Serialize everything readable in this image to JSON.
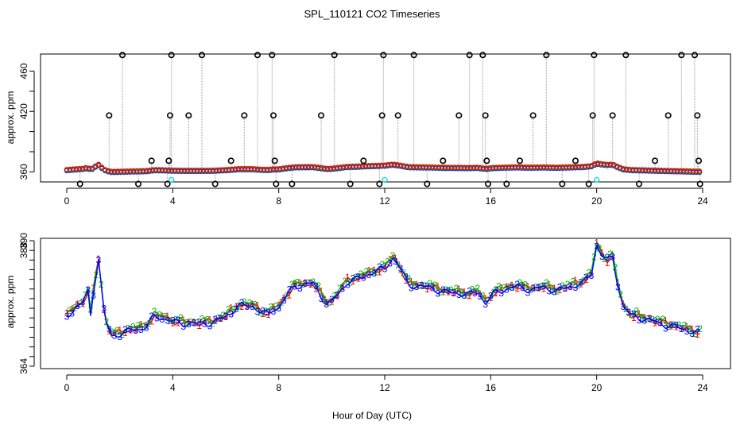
{
  "figure": {
    "title": "SPL_110121  CO2 Timeseries",
    "xlabel": "Hour of Day (UTC)"
  },
  "chart_data": [
    {
      "type": "scatter",
      "panel": "top",
      "xlabel": "",
      "ylabel": "approx. ppm",
      "xlim": [
        0,
        24
      ],
      "ylim": [
        350,
        477
      ],
      "xticks": [
        0,
        4,
        8,
        12,
        16,
        20,
        24
      ],
      "yticks": [
        360,
        380,
        400,
        420,
        440,
        460
      ],
      "ytick_labels": [
        "360",
        "",
        "",
        "420",
        "",
        "460"
      ],
      "spikes": [
        {
          "x": 0.5,
          "y": 348
        },
        {
          "x": 1.6,
          "y": 416
        },
        {
          "x": 2.1,
          "y": 476
        },
        {
          "x": 2.7,
          "y": 348
        },
        {
          "x": 3.2,
          "y": 371
        },
        {
          "x": 3.8,
          "y": 348
        },
        {
          "x": 3.85,
          "y": 371
        },
        {
          "x": 3.9,
          "y": 416
        },
        {
          "x": 3.95,
          "y": 476
        },
        {
          "x": 4.6,
          "y": 416
        },
        {
          "x": 5.1,
          "y": 476
        },
        {
          "x": 5.6,
          "y": 348
        },
        {
          "x": 6.2,
          "y": 371
        },
        {
          "x": 6.7,
          "y": 416
        },
        {
          "x": 7.2,
          "y": 476
        },
        {
          "x": 7.75,
          "y": 476
        },
        {
          "x": 7.8,
          "y": 416
        },
        {
          "x": 7.85,
          "y": 371
        },
        {
          "x": 7.9,
          "y": 348
        },
        {
          "x": 8.5,
          "y": 348
        },
        {
          "x": 9.6,
          "y": 416
        },
        {
          "x": 10.1,
          "y": 476
        },
        {
          "x": 10.7,
          "y": 348
        },
        {
          "x": 11.2,
          "y": 371
        },
        {
          "x": 11.8,
          "y": 348
        },
        {
          "x": 11.9,
          "y": 416
        },
        {
          "x": 11.95,
          "y": 476
        },
        {
          "x": 12.5,
          "y": 416
        },
        {
          "x": 13.1,
          "y": 476
        },
        {
          "x": 13.6,
          "y": 348
        },
        {
          "x": 14.2,
          "y": 371
        },
        {
          "x": 14.8,
          "y": 416
        },
        {
          "x": 15.2,
          "y": 476
        },
        {
          "x": 15.7,
          "y": 476
        },
        {
          "x": 15.8,
          "y": 416
        },
        {
          "x": 15.85,
          "y": 371
        },
        {
          "x": 15.9,
          "y": 348
        },
        {
          "x": 16.6,
          "y": 348
        },
        {
          "x": 17.1,
          "y": 371
        },
        {
          "x": 17.6,
          "y": 416
        },
        {
          "x": 18.1,
          "y": 476
        },
        {
          "x": 18.7,
          "y": 348
        },
        {
          "x": 19.2,
          "y": 371
        },
        {
          "x": 19.7,
          "y": 348
        },
        {
          "x": 19.85,
          "y": 416
        },
        {
          "x": 19.9,
          "y": 476
        },
        {
          "x": 20.6,
          "y": 416
        },
        {
          "x": 21.1,
          "y": 476
        },
        {
          "x": 21.6,
          "y": 348
        },
        {
          "x": 22.2,
          "y": 371
        },
        {
          "x": 22.7,
          "y": 416
        },
        {
          "x": 23.2,
          "y": 476
        },
        {
          "x": 23.7,
          "y": 476
        },
        {
          "x": 23.8,
          "y": 416
        },
        {
          "x": 23.85,
          "y": 371
        },
        {
          "x": 23.9,
          "y": 348
        }
      ],
      "outliers_cyan": [
        {
          "x": 3.95,
          "y": 352
        },
        {
          "x": 12.0,
          "y": 352
        },
        {
          "x": 20.0,
          "y": 352
        }
      ],
      "series_colors": {
        "s1": "#ff0000",
        "s2": "#00bb00",
        "s3": "#0000ff",
        "spike": "#000000",
        "outlier": "#00dddd",
        "connector": "#999999"
      }
    },
    {
      "type": "line",
      "panel": "bottom",
      "ylabel": "approx. ppm",
      "xlim": [
        0,
        24
      ],
      "ylim": [
        363.5,
        390.5
      ],
      "xticks": [
        0,
        4,
        8,
        12,
        16,
        20,
        24
      ],
      "yticks": [
        364,
        366,
        368,
        370,
        372,
        374,
        376,
        378,
        380,
        382,
        384,
        386,
        388,
        390
      ],
      "ytick_labels": [
        "364",
        "",
        "",
        "",
        "",
        "",
        "",
        "",
        "",
        "",
        "",
        "",
        "388",
        "390"
      ],
      "marker_labels": [
        "1",
        "2",
        "3"
      ],
      "series": [
        {
          "name": "1",
          "color": "#ff0000",
          "offset": 0.15
        },
        {
          "name": "2",
          "color": "#00bb00",
          "offset": 0.35
        },
        {
          "name": "3",
          "color": "#0000ff",
          "offset": -0.1
        }
      ],
      "base_x": [
        0,
        0.3,
        0.6,
        0.8,
        0.9,
        1.0,
        1.1,
        1.2,
        1.3,
        1.4,
        1.5,
        1.7,
        2.0,
        2.4,
        2.8,
        3.0,
        3.3,
        3.6,
        4.0,
        4.5,
        5.0,
        5.5,
        6.0,
        6.5,
        7.0,
        7.3,
        7.6,
        7.8,
        8.0,
        8.3,
        8.6,
        9.0,
        9.3,
        9.6,
        9.8,
        10.0,
        10.3,
        10.6,
        11.0,
        11.3,
        11.6,
        12.0,
        12.3,
        12.6,
        12.9,
        13.3,
        13.7,
        14.2,
        14.7,
        15.2,
        15.5,
        15.8,
        16.1,
        16.5,
        17.0,
        17.5,
        18.0,
        18.5,
        19.0,
        19.5,
        19.8,
        20.0,
        20.2,
        20.4,
        20.6,
        20.8,
        21.0,
        21.3,
        21.7,
        22.2,
        22.7,
        23.2,
        23.7,
        24.0
      ],
      "base_y": [
        374.6,
        376.0,
        377.2,
        379.5,
        374.7,
        379.4,
        383.0,
        386.1,
        380.8,
        375.6,
        372.9,
        370.4,
        370.8,
        371.5,
        371.9,
        372.3,
        374.4,
        374.1,
        373.3,
        372.9,
        372.9,
        373.1,
        374.4,
        376.6,
        376.6,
        375.4,
        374.8,
        376.0,
        376.2,
        378.7,
        380.7,
        381.0,
        381.2,
        378.7,
        377.1,
        377.4,
        379.5,
        381.6,
        382.2,
        383.0,
        383.6,
        384.4,
        386.6,
        384.2,
        381.0,
        380.6,
        380.4,
        379.5,
        379.3,
        378.9,
        379.6,
        377.2,
        379.1,
        380.0,
        380.6,
        379.9,
        380.4,
        379.7,
        380.6,
        381.4,
        383.2,
        389.1,
        387.1,
        386.0,
        386.7,
        381.0,
        376.4,
        374.6,
        374.0,
        373.3,
        372.5,
        371.9,
        371.1,
        370.9
      ]
    }
  ]
}
